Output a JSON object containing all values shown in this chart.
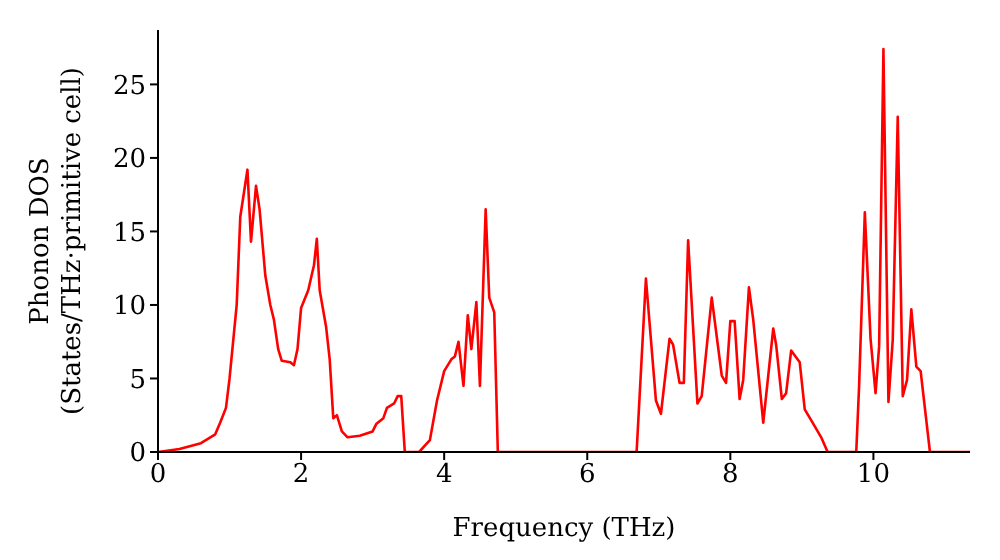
{
  "chart_data": {
    "type": "line",
    "xlabel": "Frequency (THz)",
    "ylabel": "Phonon DOS\n(States/THz·primitive cell)",
    "color": "#ff0000",
    "grid": false,
    "legend": false,
    "marker": "none",
    "line_style": "solid",
    "x": [
      0,
      0.3,
      0.6,
      0.8,
      0.87,
      0.95,
      1.0,
      1.1,
      1.15,
      1.25,
      1.3,
      1.37,
      1.42,
      1.5,
      1.57,
      1.62,
      1.68,
      1.73,
      1.85,
      1.9,
      1.95,
      2.0,
      2.1,
      2.18,
      2.22,
      2.26,
      2.35,
      2.4,
      2.45,
      2.5,
      2.57,
      2.65,
      2.82,
      3.0,
      3.05,
      3.15,
      3.2,
      3.3,
      3.35,
      3.4,
      3.45,
      3.65,
      3.8,
      3.9,
      4.0,
      4.1,
      4.15,
      4.2,
      4.27,
      4.33,
      4.38,
      4.45,
      4.5,
      4.58,
      4.63,
      4.7,
      4.75,
      6.69,
      6.82,
      6.96,
      7.03,
      7.15,
      7.2,
      7.29,
      7.35,
      7.41,
      7.54,
      7.6,
      7.74,
      7.88,
      7.94,
      8.0,
      8.06,
      8.13,
      8.18,
      8.26,
      8.32,
      8.46,
      8.6,
      8.64,
      8.72,
      8.78,
      8.85,
      8.97,
      9.04,
      9.15,
      9.27,
      9.36,
      9.76,
      9.8,
      9.88,
      9.96,
      10.03,
      10.08,
      10.14,
      10.21,
      10.27,
      10.34,
      10.41,
      10.47,
      10.53,
      10.6,
      10.66,
      10.79,
      11.35
    ],
    "values": [
      0,
      0.2,
      0.6,
      1.2,
      2,
      3,
      5,
      10,
      16,
      19.2,
      14.3,
      18.1,
      16.5,
      12,
      10,
      9,
      7,
      6.2,
      6.1,
      5.9,
      7,
      9.8,
      11,
      12.7,
      14.5,
      11,
      8.5,
      6.3,
      2.3,
      2.5,
      1.4,
      1.0,
      1.1,
      1.4,
      1.9,
      2.3,
      3.0,
      3.3,
      3.8,
      3.8,
      0,
      0,
      0.8,
      3.5,
      5.5,
      6.3,
      6.5,
      7.5,
      4.5,
      9.3,
      7.0,
      10.2,
      4.5,
      16.5,
      10.5,
      9.5,
      0,
      0,
      11.8,
      3.5,
      2.6,
      7.7,
      7.3,
      4.7,
      4.7,
      14.4,
      3.3,
      3.8,
      10.5,
      5.2,
      4.7,
      8.9,
      8.9,
      3.6,
      4.9,
      11.2,
      9.0,
      2.0,
      8.4,
      7.3,
      3.6,
      4.0,
      6.9,
      6.1,
      2.9,
      2.0,
      1.0,
      0,
      0,
      4.5,
      16.3,
      7.7,
      4,
      7.2,
      27.4,
      3.4,
      7.6,
      22.8,
      3.8,
      4.9,
      9.7,
      5.8,
      5.5,
      0,
      0
    ],
    "xlim": [
      0,
      11.35
    ],
    "xticks": [
      0,
      2,
      4,
      6,
      8,
      10
    ],
    "ylim": [
      0,
      28.7
    ],
    "yticks": [
      0,
      5,
      10,
      15,
      20,
      25
    ]
  }
}
